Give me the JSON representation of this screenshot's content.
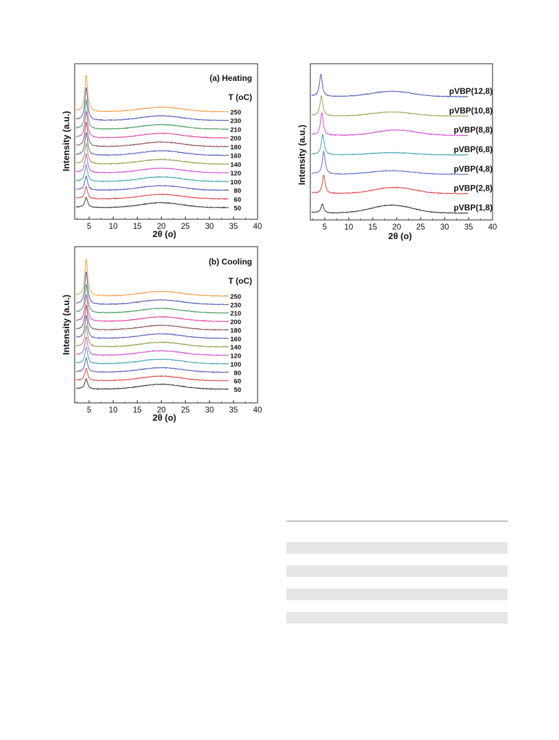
{
  "colors": {
    "250": "#f59a3a",
    "230": "#4c57b0",
    "210": "#3b9a5a",
    "200": "#e0409a",
    "180": "#8a4a4a",
    "160": "#5058b8",
    "140": "#8a9a3a",
    "120": "#d24ad2",
    "100": "#3aa0b0",
    "80": "#5058b8",
    "60": "#e04040",
    "50": "#333333",
    "pVBP(12,8)": "#4c57b0",
    "pVBP(10,8)": "#9aa04a",
    "pVBP(8,8)": "#d24ad2",
    "pVBP(6,8)": "#3aa0b0",
    "pVBP(4,8)": "#5a6ac8",
    "pVBP(2,8)": "#e04040",
    "pVBP(1,8)": "#333333"
  },
  "chart_data": [
    {
      "type": "line",
      "title": "(a) Heating",
      "legend_title": "T (oC)",
      "xlabel": "2θ (o)",
      "ylabel": "Intensity (a.u.)",
      "xlim": [
        2,
        40
      ],
      "xticks": [
        "5",
        "10",
        "15",
        "20",
        "25",
        "30",
        "35",
        "40"
      ],
      "grid": false,
      "series": [
        {
          "name": "250",
          "peak_x": 4.4,
          "peak_height": 0.9,
          "halo_x": 20,
          "halo_height": 0.12
        },
        {
          "name": "230",
          "peak_x": 4.4,
          "peak_height": 0.8,
          "halo_x": 20,
          "halo_height": 0.12
        },
        {
          "name": "210",
          "peak_x": 4.4,
          "peak_height": 0.7,
          "halo_x": 20,
          "halo_height": 0.12
        },
        {
          "name": "200",
          "peak_x": 4.4,
          "peak_height": 0.65,
          "halo_x": 20,
          "halo_height": 0.12
        },
        {
          "name": "180",
          "peak_x": 4.4,
          "peak_height": 0.6,
          "halo_x": 20,
          "halo_height": 0.12
        },
        {
          "name": "160",
          "peak_x": 4.4,
          "peak_height": 0.55,
          "halo_x": 20,
          "halo_height": 0.12
        },
        {
          "name": "140",
          "peak_x": 4.4,
          "peak_height": 0.5,
          "halo_x": 20,
          "halo_height": 0.12
        },
        {
          "name": "120",
          "peak_x": 4.4,
          "peak_height": 0.45,
          "halo_x": 20,
          "halo_height": 0.12
        },
        {
          "name": "100",
          "peak_x": 4.4,
          "peak_height": 0.4,
          "halo_x": 20,
          "halo_height": 0.12
        },
        {
          "name": "80",
          "peak_x": 4.4,
          "peak_height": 0.35,
          "halo_x": 20,
          "halo_height": 0.12
        },
        {
          "name": "60",
          "peak_x": 4.4,
          "peak_height": 0.3,
          "halo_x": 20,
          "halo_height": 0.12
        },
        {
          "name": "50",
          "peak_x": 4.4,
          "peak_height": 0.25,
          "halo_x": 20,
          "halo_height": 0.13
        }
      ]
    },
    {
      "type": "line",
      "title": "(b) Cooling",
      "legend_title": "T (oC)",
      "xlabel": "2θ (o)",
      "ylabel": "Intensity (a.u.)",
      "xlim": [
        2,
        40
      ],
      "xticks": [
        "5",
        "10",
        "15",
        "20",
        "25",
        "30",
        "35",
        "40"
      ],
      "grid": false,
      "series": [
        {
          "name": "250",
          "peak_x": 4.4,
          "peak_height": 0.9,
          "halo_x": 20,
          "halo_height": 0.12
        },
        {
          "name": "230",
          "peak_x": 4.4,
          "peak_height": 0.8,
          "halo_x": 20,
          "halo_height": 0.12
        },
        {
          "name": "210",
          "peak_x": 4.4,
          "peak_height": 0.7,
          "halo_x": 20,
          "halo_height": 0.12
        },
        {
          "name": "200",
          "peak_x": 4.4,
          "peak_height": 0.65,
          "halo_x": 20,
          "halo_height": 0.12
        },
        {
          "name": "180",
          "peak_x": 4.4,
          "peak_height": 0.6,
          "halo_x": 20,
          "halo_height": 0.12
        },
        {
          "name": "160",
          "peak_x": 4.4,
          "peak_height": 0.55,
          "halo_x": 20,
          "halo_height": 0.12
        },
        {
          "name": "140",
          "peak_x": 4.4,
          "peak_height": 0.5,
          "halo_x": 20,
          "halo_height": 0.12
        },
        {
          "name": "120",
          "peak_x": 4.4,
          "peak_height": 0.45,
          "halo_x": 20,
          "halo_height": 0.12
        },
        {
          "name": "100",
          "peak_x": 4.4,
          "peak_height": 0.4,
          "halo_x": 20,
          "halo_height": 0.12
        },
        {
          "name": "80",
          "peak_x": 4.4,
          "peak_height": 0.35,
          "halo_x": 20,
          "halo_height": 0.12
        },
        {
          "name": "60",
          "peak_x": 4.4,
          "peak_height": 0.3,
          "halo_x": 20,
          "halo_height": 0.12
        },
        {
          "name": "50",
          "peak_x": 4.4,
          "peak_height": 0.25,
          "halo_x": 20,
          "halo_height": 0.13
        }
      ]
    },
    {
      "type": "line",
      "title": "",
      "xlabel": "2θ (o)",
      "ylabel": "Intensity (a.u.)",
      "xlim": [
        2,
        40
      ],
      "xticks": [
        "5",
        "10",
        "15",
        "20",
        "25",
        "30",
        "35",
        "40"
      ],
      "grid": false,
      "series": [
        {
          "name": "pVBP(12,8)",
          "peak_x": 4.2,
          "peak_height": 0.55,
          "halo_x": 19,
          "halo_height": 0.12
        },
        {
          "name": "pVBP(10,8)",
          "peak_x": 4.3,
          "peak_height": 0.5,
          "halo_x": 19,
          "halo_height": 0.09
        },
        {
          "name": "pVBP(8,8)",
          "peak_x": 4.4,
          "peak_height": 0.55,
          "halo_x": 20,
          "halo_height": 0.12
        },
        {
          "name": "pVBP(6,8)",
          "peak_x": 4.6,
          "peak_height": 0.5,
          "halo_x": 19,
          "halo_height": 0.05
        },
        {
          "name": "pVBP(4,8)",
          "peak_x": 4.8,
          "peak_height": 0.55,
          "halo_x": 19,
          "halo_height": 0.08
        },
        {
          "name": "pVBP(2,8)",
          "peak_x": 4.8,
          "peak_height": 0.45,
          "halo_x": 19.5,
          "halo_height": 0.14
        },
        {
          "name": "pVBP(1,8)",
          "peak_x": 4.5,
          "peak_height": 0.22,
          "halo_x": 19,
          "halo_height": 0.18
        }
      ]
    }
  ]
}
